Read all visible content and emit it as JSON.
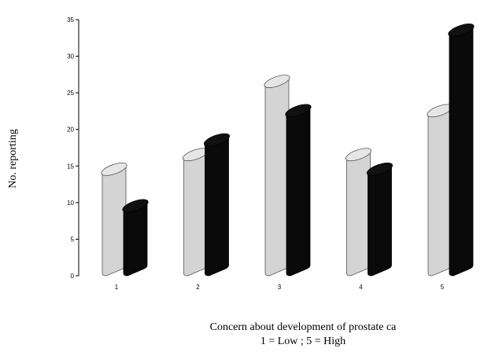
{
  "chart_data": {
    "type": "bar",
    "title": "",
    "xlabel": "Concern about development of prostate ca",
    "xlabel_line2": "1 = Low ; 5 = High",
    "ylabel": "No. reporting",
    "ylim": [
      0,
      35
    ],
    "yticks": [
      0,
      5,
      10,
      15,
      20,
      25,
      30,
      35
    ],
    "categories": [
      "1",
      "2",
      "3",
      "4",
      "5"
    ],
    "series": [
      {
        "values": [
          14,
          16,
          26,
          16,
          22
        ],
        "color": "#d4d4d4"
      },
      {
        "values": [
          9,
          18,
          22,
          14,
          33
        ],
        "color": "#0a0a0a"
      }
    ],
    "style": "3d-cylinder",
    "grid": false,
    "legend": "none"
  }
}
